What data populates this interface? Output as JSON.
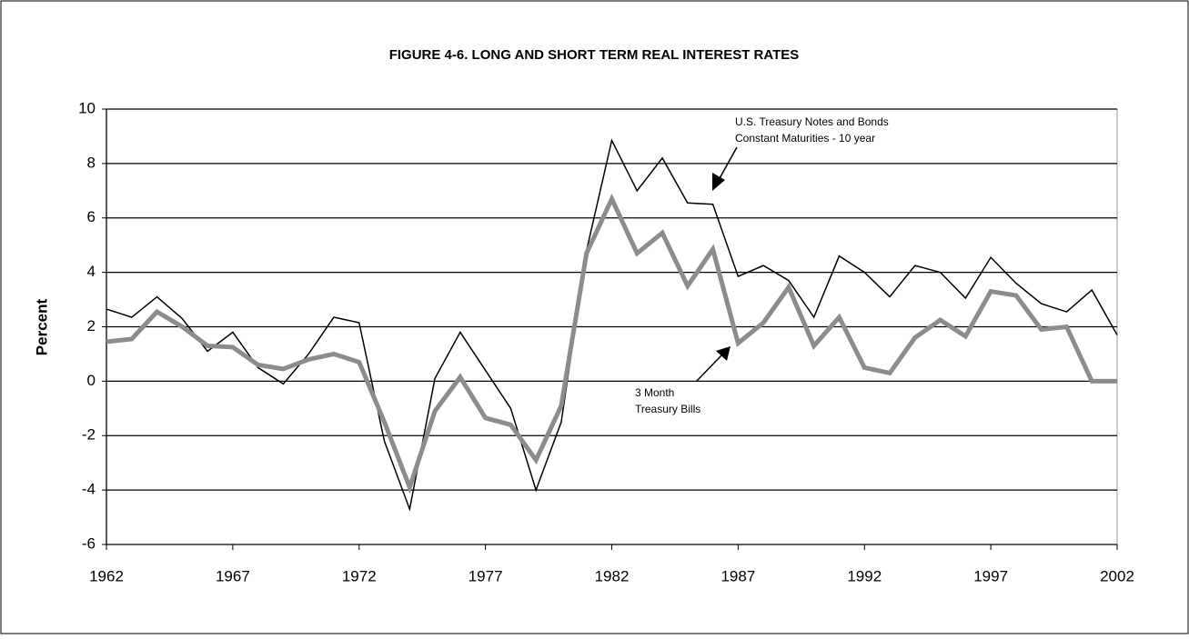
{
  "chart_data": {
    "type": "line",
    "title": "FIGURE 4-6. LONG AND SHORT TERM REAL INTEREST RATES",
    "y_label": "Percent",
    "x": [
      1962,
      1963,
      1964,
      1965,
      1966,
      1967,
      1968,
      1969,
      1970,
      1971,
      1972,
      1973,
      1974,
      1975,
      1976,
      1977,
      1978,
      1979,
      1980,
      1981,
      1982,
      1983,
      1984,
      1985,
      1986,
      1987,
      1988,
      1989,
      1990,
      1991,
      1992,
      1993,
      1994,
      1995,
      1996,
      1997,
      1998,
      1999,
      2000,
      2001,
      2002
    ],
    "series": [
      {
        "color": "#000000",
        "width": 1.5,
        "values": [
          2.65,
          2.35,
          3.1,
          2.3,
          1.1,
          1.8,
          0.5,
          -0.1,
          1.0,
          2.35,
          2.15,
          -2.2,
          -4.7,
          0.1,
          1.8,
          0.4,
          -1.0,
          -4.0,
          -1.5,
          4.8,
          8.85,
          7.0,
          8.2,
          6.55,
          6.5,
          3.85,
          4.25,
          3.7,
          2.35,
          4.6,
          4.0,
          3.1,
          4.25,
          4.0,
          3.05,
          4.55,
          3.6,
          2.85,
          2.55,
          3.35,
          1.7
        ]
      },
      {
        "color": "#8c8c8c",
        "width": 5,
        "values": [
          1.45,
          1.55,
          2.55,
          2.0,
          1.3,
          1.25,
          0.6,
          0.45,
          0.8,
          1.0,
          0.7,
          -1.5,
          -3.9,
          -1.1,
          0.15,
          -1.35,
          -1.6,
          -2.9,
          -0.9,
          4.7,
          6.7,
          4.7,
          5.45,
          3.5,
          4.85,
          1.4,
          2.15,
          3.45,
          1.3,
          2.35,
          0.5,
          0.3,
          1.6,
          2.25,
          1.65,
          3.3,
          3.15,
          1.9,
          2.0,
          0.0,
          0.0
        ]
      }
    ],
    "annotations": [
      [
        "U.S. Treasury Notes and Bonds",
        "Constant Maturities - 10 year"
      ],
      [
        "3 Month",
        "Treasury Bills"
      ]
    ],
    "xlim": [
      1962,
      2002
    ],
    "xticks": [
      1962,
      1967,
      1972,
      1977,
      1982,
      1987,
      1992,
      1997,
      2002
    ],
    "ylim": [
      -6,
      10
    ],
    "yticks": [
      -6,
      -4,
      -2,
      0,
      2,
      4,
      6,
      8,
      10
    ],
    "grid": true
  }
}
